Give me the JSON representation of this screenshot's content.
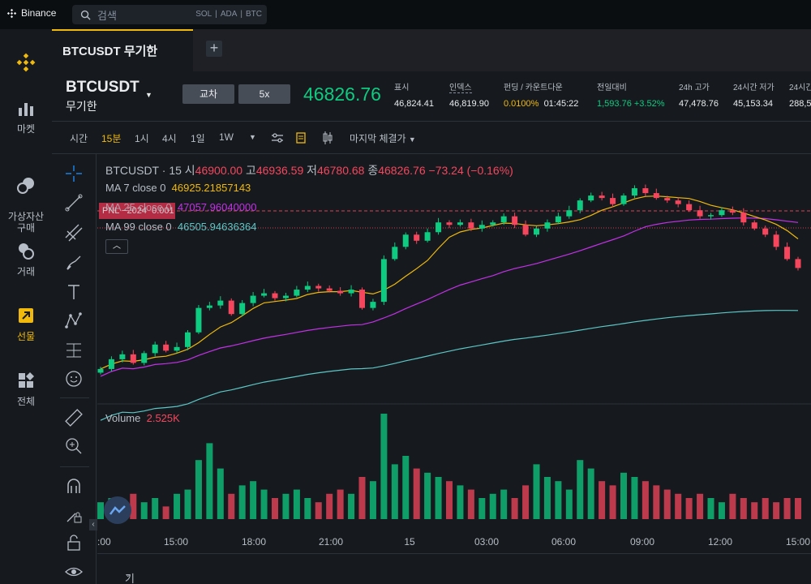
{
  "app": {
    "brand": "Binance"
  },
  "search": {
    "placeholder": "검색",
    "tags": [
      "SOL",
      "ADA",
      "BTC"
    ]
  },
  "nav": [
    {
      "label": "마켓",
      "icon": "market-chart-icon"
    },
    {
      "label": "가상자산\n구매",
      "icon": "buy-crypto-icon"
    },
    {
      "label": "거래",
      "icon": "trade-icon"
    },
    {
      "label": "선물",
      "icon": "futures-icon"
    },
    {
      "label": "전체",
      "icon": "all-apps-icon"
    }
  ],
  "tab": {
    "label": "BTCUSDT 무기한",
    "add": "+"
  },
  "symbol": {
    "name": "BTCUSDT",
    "type": "무기한",
    "margin_mode": "교차",
    "leverage": "5x",
    "last_price": "46826.76"
  },
  "stats": [
    {
      "label": "표시",
      "value": "46,824.41"
    },
    {
      "label": "인덱스",
      "value": "46,819.90"
    },
    {
      "label": "펀딩 / 카운트다운",
      "value": "0.0100%",
      "value2": "01:45:22"
    },
    {
      "label": "전일대비",
      "value": "1,593.76 +3.52%"
    },
    {
      "label": "24h 고가",
      "value": "47,478.76"
    },
    {
      "label": "24시간 저가",
      "value": "45,153.34"
    },
    {
      "label": "24시간",
      "value": "288,5"
    }
  ],
  "toolbar": {
    "intervals": [
      "시간",
      "15분",
      "1시",
      "4시",
      "1일",
      "1W"
    ],
    "active_interval": "15분",
    "price_type": "마지막 체결가"
  },
  "chart_header": {
    "symbol": "BTCUSDT",
    "interval": "15",
    "o_label": "시",
    "open": "46900.00",
    "h_label": "고",
    "high": "46936.59",
    "l_label": "저",
    "low": "46780.68",
    "c_label": "종",
    "close": "46826.76",
    "change": "−73.24 (−0.16%)",
    "ma7_label": "MA 7 close 0",
    "ma7": "46925.21857143",
    "ma25_label": "MA 25 close 0",
    "ma25": "47057.96040000",
    "ma99_label": "MA 99 close 0",
    "ma99": "46505.94636364",
    "pnl_label": "PNL −2024",
    "pnl_qty": "0.001",
    "volume_label": "Volume",
    "volume": "2.525K"
  },
  "bottom": {
    "label": "기간"
  },
  "colors": {
    "up": "#0ecb81",
    "down": "#f6465d",
    "accent": "#f0b90b",
    "ma7": "#f0b90b",
    "ma25": "#c431e8",
    "ma99": "#5dc6c6"
  },
  "chart_data": {
    "type": "candlestick",
    "x_ticks": [
      ":00",
      "15:00",
      "18:00",
      "21:00",
      "15",
      "03:00",
      "06:00",
      "09:00",
      "12:00",
      "15:00"
    ],
    "close_series": [
      46000,
      46080,
      46120,
      46050,
      46130,
      46200,
      46150,
      46180,
      46300,
      46500,
      46520,
      46560,
      46450,
      46540,
      46600,
      46620,
      46580,
      46600,
      46650,
      46680,
      46660,
      46640,
      46620,
      46650,
      46500,
      46550,
      46900,
      47000,
      47100,
      47050,
      47120,
      47200,
      47180,
      47200,
      47150,
      47180,
      47200,
      47250,
      47180,
      47100,
      47150,
      47200,
      47250,
      47300,
      47380,
      47420,
      47400,
      47350,
      47420,
      47480,
      47440,
      47400,
      47380,
      47350,
      47300,
      47250,
      47260,
      47300,
      47280,
      47200,
      47150,
      47100,
      47000,
      46900,
      46826.76
    ],
    "volume_series": [
      0.4,
      0.5,
      0.3,
      0.6,
      0.4,
      0.5,
      0.3,
      0.6,
      0.7,
      1.4,
      1.8,
      1.2,
      0.6,
      0.8,
      0.9,
      0.7,
      0.5,
      0.6,
      0.7,
      0.5,
      0.4,
      0.6,
      0.7,
      0.6,
      1.0,
      0.9,
      2.5,
      1.3,
      1.5,
      1.2,
      1.1,
      1.0,
      0.9,
      0.8,
      0.7,
      0.5,
      0.6,
      0.7,
      0.5,
      0.8,
      1.3,
      1.0,
      0.9,
      0.7,
      1.4,
      1.2,
      0.9,
      0.8,
      1.1,
      1.0,
      0.9,
      0.8,
      0.7,
      0.6,
      0.5,
      0.6,
      0.5,
      0.4,
      0.6,
      0.5,
      0.4,
      0.5,
      0.4,
      0.5,
      0.5
    ]
  }
}
